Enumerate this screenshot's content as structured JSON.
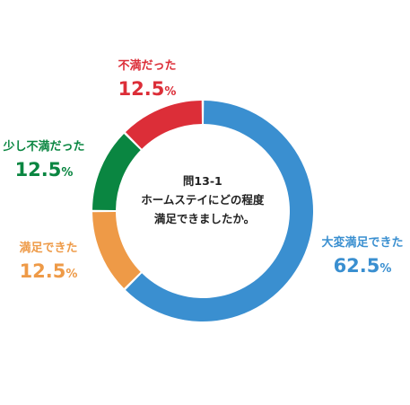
{
  "chart_data": {
    "type": "pie",
    "variant": "donut",
    "title_lines": [
      "問13-1",
      "ホームステイにどの程度",
      "満足できましたか。"
    ],
    "slices": [
      {
        "label": "大変満足できた",
        "value": 62.5,
        "display_value": "62.5",
        "unit": "%",
        "color": "#3a8fd0"
      },
      {
        "label": "満足できた",
        "value": 12.5,
        "display_value": "12.5",
        "unit": "%",
        "color": "#ee9a47"
      },
      {
        "label": "少し不満だった",
        "value": 12.5,
        "display_value": "12.5",
        "unit": "%",
        "color": "#0a8641"
      },
      {
        "label": "不満だった",
        "value": 12.5,
        "display_value": "12.5",
        "unit": "%",
        "color": "#dc2e38"
      }
    ]
  }
}
